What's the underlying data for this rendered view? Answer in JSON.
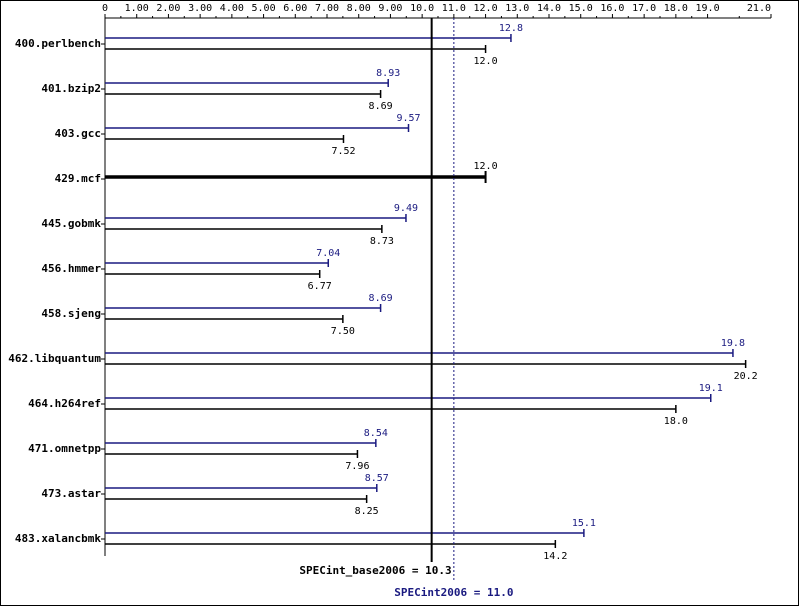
{
  "chart_data": {
    "type": "bar",
    "orientation": "horizontal",
    "xlim": [
      0,
      21.0
    ],
    "ticks": [
      {
        "value": 0,
        "label": "0"
      },
      {
        "value": 1,
        "label": "1.00"
      },
      {
        "value": 2,
        "label": "2.00"
      },
      {
        "value": 3,
        "label": "3.00"
      },
      {
        "value": 4,
        "label": "4.00"
      },
      {
        "value": 5,
        "label": "5.00"
      },
      {
        "value": 6,
        "label": "6.00"
      },
      {
        "value": 7,
        "label": "7.00"
      },
      {
        "value": 8,
        "label": "8.00"
      },
      {
        "value": 9,
        "label": "9.00"
      },
      {
        "value": 10,
        "label": "10.0"
      },
      {
        "value": 11,
        "label": "11.0"
      },
      {
        "value": 12,
        "label": "12.0"
      },
      {
        "value": 13,
        "label": "13.0"
      },
      {
        "value": 14,
        "label": "14.0"
      },
      {
        "value": 15,
        "label": "15.0"
      },
      {
        "value": 16,
        "label": "16.0"
      },
      {
        "value": 17,
        "label": "17.0"
      },
      {
        "value": 18,
        "label": "18.0"
      },
      {
        "value": 19,
        "label": "19.0"
      },
      {
        "value": 21,
        "label": "21.0"
      }
    ],
    "series_colors": {
      "peak": "#1a1a80",
      "base": "#000000"
    },
    "benchmarks": [
      {
        "name": "400.perlbench",
        "peak": 12.8,
        "peak_label": "12.8",
        "base": 12.0,
        "base_label": "12.0"
      },
      {
        "name": "401.bzip2",
        "peak": 8.93,
        "peak_label": "8.93",
        "base": 8.69,
        "base_label": "8.69"
      },
      {
        "name": "403.gcc",
        "peak": 9.57,
        "peak_label": "9.57",
        "base": 7.52,
        "base_label": "7.52"
      },
      {
        "name": "429.mcf",
        "peak": null,
        "peak_label": null,
        "base": 12.0,
        "base_label": "12.0"
      },
      {
        "name": "445.gobmk",
        "peak": 9.49,
        "peak_label": "9.49",
        "base": 8.73,
        "base_label": "8.73"
      },
      {
        "name": "456.hmmer",
        "peak": 7.04,
        "peak_label": "7.04",
        "base": 6.77,
        "base_label": "6.77"
      },
      {
        "name": "458.sjeng",
        "peak": 8.69,
        "peak_label": "8.69",
        "base": 7.5,
        "base_label": "7.50"
      },
      {
        "name": "462.libquantum",
        "peak": 19.8,
        "peak_label": "19.8",
        "base": 20.2,
        "base_label": "20.2"
      },
      {
        "name": "464.h264ref",
        "peak": 19.1,
        "peak_label": "19.1",
        "base": 18.0,
        "base_label": "18.0"
      },
      {
        "name": "471.omnetpp",
        "peak": 8.54,
        "peak_label": "8.54",
        "base": 7.96,
        "base_label": "7.96"
      },
      {
        "name": "473.astar",
        "peak": 8.57,
        "peak_label": "8.57",
        "base": 8.25,
        "base_label": "8.25"
      },
      {
        "name": "483.xalancbmk",
        "peak": 15.1,
        "peak_label": "15.1",
        "base": 14.2,
        "base_label": "14.2"
      }
    ],
    "summary": {
      "base": {
        "value": 10.3,
        "label": "SPECint_base2006 = 10.3"
      },
      "peak": {
        "value": 11.0,
        "label": "SPECint2006 = 11.0"
      }
    }
  }
}
